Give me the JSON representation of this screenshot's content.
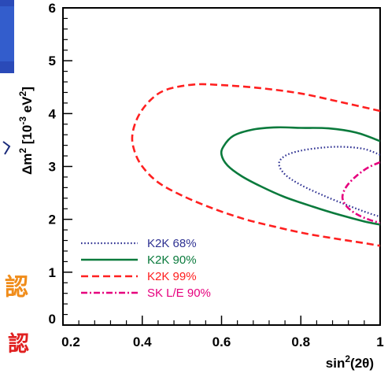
{
  "chart_data": {
    "type": "line",
    "xlabel_base": "sin",
    "xlabel_sup": "2",
    "xlabel_arg": "(2θ)",
    "ylabel_main": "Δm",
    "ylabel_sup1": "2",
    "ylabel_unit_open": " [10",
    "ylabel_sup2": "-3",
    "ylabel_unit_ev": " eV",
    "ylabel_sup3": "2",
    "ylabel_close": "]",
    "xlim": [
      0.2,
      1.0
    ],
    "ylim": [
      0,
      6
    ],
    "xticks": [
      {
        "value": 0.2,
        "label": "0.2"
      },
      {
        "value": 0.4,
        "label": "0.4"
      },
      {
        "value": 0.6,
        "label": "0.6"
      },
      {
        "value": 0.8,
        "label": "0.8"
      },
      {
        "value": 1.0,
        "label": "1"
      }
    ],
    "yticks": [
      {
        "value": 0,
        "label": "0"
      },
      {
        "value": 1,
        "label": "1"
      },
      {
        "value": 2,
        "label": "2"
      },
      {
        "value": 3,
        "label": "3"
      },
      {
        "value": 4,
        "label": "4"
      },
      {
        "value": 5,
        "label": "5"
      },
      {
        "value": 6,
        "label": "6"
      }
    ],
    "legend_position": "bottom-left",
    "series": [
      {
        "name": "K2K 68%",
        "color": "#2e3192",
        "dash": "dotted",
        "points": [
          [
            1.0,
            3.22
          ],
          [
            0.96,
            3.33
          ],
          [
            0.91,
            3.37
          ],
          [
            0.86,
            3.36
          ],
          [
            0.8,
            3.3
          ],
          [
            0.76,
            3.2
          ],
          [
            0.745,
            3.05
          ],
          [
            0.76,
            2.85
          ],
          [
            0.8,
            2.65
          ],
          [
            0.86,
            2.44
          ],
          [
            0.92,
            2.26
          ],
          [
            0.97,
            2.12
          ],
          [
            1.0,
            2.05
          ]
        ]
      },
      {
        "name": "K2K 90%",
        "color": "#0a7a3c",
        "dash": "solid",
        "points": [
          [
            1.0,
            3.48
          ],
          [
            0.94,
            3.64
          ],
          [
            0.87,
            3.72
          ],
          [
            0.8,
            3.73
          ],
          [
            0.74,
            3.74
          ],
          [
            0.68,
            3.7
          ],
          [
            0.63,
            3.58
          ],
          [
            0.605,
            3.38
          ],
          [
            0.6,
            3.22
          ],
          [
            0.615,
            3.02
          ],
          [
            0.65,
            2.82
          ],
          [
            0.7,
            2.62
          ],
          [
            0.76,
            2.42
          ],
          [
            0.83,
            2.24
          ],
          [
            0.9,
            2.08
          ],
          [
            0.96,
            1.96
          ],
          [
            1.0,
            1.9
          ]
        ]
      },
      {
        "name": "K2K 99%",
        "color": "#ff2020",
        "dash": "dashed",
        "points": [
          [
            1.0,
            4.05
          ],
          [
            0.9,
            4.22
          ],
          [
            0.8,
            4.38
          ],
          [
            0.7,
            4.48
          ],
          [
            0.6,
            4.54
          ],
          [
            0.53,
            4.55
          ],
          [
            0.46,
            4.45
          ],
          [
            0.42,
            4.25
          ],
          [
            0.39,
            3.95
          ],
          [
            0.375,
            3.6
          ],
          [
            0.38,
            3.3
          ],
          [
            0.4,
            3.0
          ],
          [
            0.44,
            2.7
          ],
          [
            0.5,
            2.45
          ],
          [
            0.58,
            2.2
          ],
          [
            0.66,
            2.0
          ],
          [
            0.74,
            1.85
          ],
          [
            0.82,
            1.72
          ],
          [
            0.9,
            1.62
          ],
          [
            0.96,
            1.55
          ],
          [
            1.0,
            1.5
          ]
        ]
      },
      {
        "name": "SK L/E 90%",
        "color": "#e6007e",
        "dash": "dashdot",
        "points": [
          [
            1.0,
            3.08
          ],
          [
            0.97,
            2.98
          ],
          [
            0.94,
            2.82
          ],
          [
            0.915,
            2.62
          ],
          [
            0.905,
            2.42
          ],
          [
            0.915,
            2.25
          ],
          [
            0.94,
            2.1
          ],
          [
            0.97,
            2.0
          ],
          [
            1.0,
            1.93
          ]
        ]
      }
    ]
  },
  "side_text": {
    "top_char": "認",
    "bottom_char": "認"
  }
}
